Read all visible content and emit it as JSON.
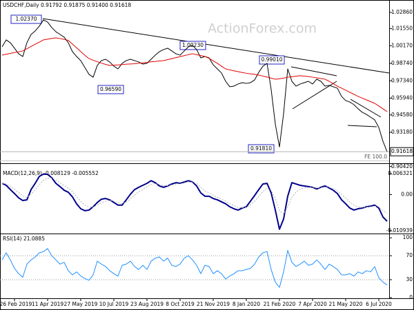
{
  "chart_data": [
    {
      "type": "line",
      "title": "USDCHF,Daily  0.91792 0.91875 0.91400 0.91618",
      "watermark": "ActionForex.com",
      "categories": [
        null,
        null,
        null,
        "26 Feb 2019",
        null,
        null,
        null,
        null,
        null,
        null,
        null,
        "11 Apr 2019",
        null,
        null,
        null,
        null,
        null,
        null,
        null,
        "27 May 2019",
        null,
        null,
        null,
        null,
        null,
        null,
        null,
        "10 Jul 2019",
        null,
        null,
        null,
        null,
        null,
        null,
        null,
        "23 Aug 2019",
        null,
        null,
        null,
        null,
        null,
        null,
        null,
        "8 Oct 2019",
        null,
        null,
        null,
        null,
        null,
        null,
        null,
        "21 Nov 2019",
        null,
        null,
        null,
        null,
        null,
        null,
        null,
        "8 Jan 2020",
        null,
        null,
        null,
        null,
        null,
        null,
        null,
        "21 Feb 2020",
        null,
        null,
        null,
        null,
        null,
        null,
        null,
        "7 Apr 2020",
        null,
        null,
        null,
        null,
        null,
        null,
        null,
        "21 May 2020",
        null,
        null,
        null,
        null,
        null,
        null,
        null,
        "6 Jul 2020",
        null,
        null
      ],
      "series": [
        {
          "name": "USDCHF",
          "color": "#000000",
          "style": "solid",
          "values": [
            1.0008,
            1.0064,
            1.0041,
            0.9997,
            0.9952,
            0.993,
            1.0041,
            1.0108,
            1.0136,
            1.0175,
            1.0225,
            1.0208,
            1.0164,
            1.013,
            1.0108,
            1.0086,
            1.0041,
            0.9969,
            0.993,
            0.9897,
            0.9841,
            0.9786,
            0.9763,
            0.9858,
            0.9897,
            0.9908,
            0.9886,
            0.9852,
            0.983,
            0.9875,
            0.9897,
            0.9908,
            0.9897,
            0.9886,
            0.9869,
            0.9875,
            0.9908,
            0.9941,
            0.9969,
            0.9986,
            0.9997,
            0.9975,
            0.9952,
            0.9941,
            0.9975,
            1.0008,
            1.0019,
            0.9986,
            0.9919,
            0.993,
            0.9919,
            0.9863,
            0.983,
            0.9797,
            0.973,
            0.9686,
            0.9691,
            0.9708,
            0.9719,
            0.9713,
            0.9719,
            0.9741,
            0.9802,
            0.9852,
            0.9875,
            0.9663,
            0.9385,
            0.92,
            0.9469,
            0.983,
            0.973,
            0.9691,
            0.9708,
            0.9719,
            0.973,
            0.9708,
            0.9747,
            0.973,
            0.9691,
            0.9697,
            0.9686,
            0.9674,
            0.9608,
            0.9574,
            0.9563,
            0.9541,
            0.9508,
            0.948,
            0.9463,
            0.9441,
            0.9419,
            0.9357,
            0.9246,
            0.91618
          ]
        },
        {
          "name": "MA",
          "color": "#e00000",
          "style": "solid",
          "values": [
            0.9941,
            0.9948,
            0.9955,
            0.9962,
            0.9968,
            0.9975,
            0.9993,
            1.0011,
            1.0029,
            1.0046,
            1.0064,
            1.007,
            1.0076,
            1.008,
            1.0075,
            1.0068,
            1.006,
            1.003,
            1.0,
            0.997,
            0.994,
            0.9913,
            0.99,
            0.9888,
            0.9877,
            0.9866,
            0.9858,
            0.986,
            0.9862,
            0.9865,
            0.9868,
            0.987,
            0.9872,
            0.9875,
            0.9879,
            0.9883,
            0.9887,
            0.989,
            0.9894,
            0.9897,
            0.9905,
            0.9913,
            0.9921,
            0.9929,
            0.9937,
            0.9945,
            0.9952,
            0.9945,
            0.9938,
            0.993,
            0.9915,
            0.9895,
            0.9875,
            0.9852,
            0.983,
            0.9822,
            0.9815,
            0.9808,
            0.9801,
            0.9795,
            0.979,
            0.9786,
            0.978,
            0.9772,
            0.9764,
            0.9755,
            0.9747,
            0.975,
            0.9756,
            0.9763,
            0.9767,
            0.9771,
            0.9775,
            0.9772,
            0.9768,
            0.9763,
            0.9758,
            0.9752,
            0.9747,
            0.973,
            0.971,
            0.9691,
            0.9675,
            0.9658,
            0.9641,
            0.9625,
            0.9608,
            0.9594,
            0.958,
            0.9566,
            0.9552,
            0.953,
            0.9508,
            0.9485
          ]
        }
      ],
      "ylim": [
        0.9074,
        1.0386
      ],
      "yticks": [
        {
          "value": 1.0286,
          "label": "1.02860"
        },
        {
          "value": 1.0155,
          "label": "1.01550"
        },
        {
          "value": 1.0017,
          "label": "1.00170"
        },
        {
          "value": 0.9874,
          "label": "0.98740"
        },
        {
          "value": 0.9734,
          "label": "0.97340"
        },
        {
          "value": 0.9594,
          "label": "0.95940"
        },
        {
          "value": 0.9458,
          "label": "0.94580"
        },
        {
          "value": 0.9318,
          "label": "0.93180"
        },
        {
          "value": 0.9042,
          "label": "0.90420"
        }
      ],
      "last_price": 0.91618,
      "annotations": [
        "1.02370",
        "1.00230",
        "0.99010",
        "0.96590",
        "0.91810",
        "FE 100.0"
      ]
    },
    {
      "type": "line",
      "title": "MACD(12,26,9) -0.008129 -0.005552",
      "series": [
        {
          "name": "MACD",
          "color": "#00008b",
          "style": "bold",
          "values": [
            0.0034,
            0.0028,
            0.0015,
            0.0003,
            -0.001,
            -0.0018,
            -0.0016,
            0.0015,
            0.0034,
            0.0055,
            0.0062,
            0.0061,
            0.0051,
            0.0034,
            0.0024,
            0.0013,
            0.0007,
            -0.0007,
            -0.0028,
            -0.0043,
            -0.0049,
            -0.0047,
            -0.0037,
            -0.0024,
            -0.0014,
            -0.0012,
            -0.0016,
            -0.0024,
            -0.0032,
            -0.0032,
            -0.0016,
            0.0001,
            0.0015,
            0.0022,
            0.0028,
            0.0034,
            0.0042,
            0.0036,
            0.0026,
            0.0022,
            0.0026,
            0.0032,
            0.0036,
            0.0034,
            0.0038,
            0.0042,
            0.0038,
            0.0026,
            0.0005,
            -0.0005,
            -0.0005,
            -0.0012,
            -0.0016,
            -0.0022,
            -0.0028,
            -0.0037,
            -0.0043,
            -0.0047,
            -0.0041,
            -0.0037,
            -0.002,
            -0.0003,
            0.0015,
            0.0032,
            0.0034,
            0.0005,
            -0.0047,
            -0.0105,
            -0.0074,
            -0.0005,
            0.0036,
            0.0032,
            0.0028,
            0.0026,
            0.0024,
            0.0022,
            0.0017,
            0.0022,
            0.0026,
            0.002,
            0.0013,
            0.0003,
            -0.0016,
            -0.0028,
            -0.0041,
            -0.0047,
            -0.0043,
            -0.0041,
            -0.0037,
            -0.0035,
            -0.0032,
            -0.0041,
            -0.0068,
            -0.0081
          ]
        },
        {
          "name": "Signal",
          "color": "#b0b0b0",
          "style": "dotted",
          "values": [
            0.0034,
            0.0032,
            0.0025,
            0.0016,
            0.0006,
            -0.0004,
            -0.0009,
            0.0001,
            0.0014,
            0.003,
            0.0043,
            0.005,
            0.005,
            0.0044,
            0.0036,
            0.0027,
            0.0019,
            0.0009,
            -0.0006,
            -0.0021,
            -0.0032,
            -0.0038,
            -0.0038,
            -0.0032,
            -0.0025,
            -0.002,
            -0.0018,
            -0.002,
            -0.0025,
            -0.0028,
            -0.0023,
            -0.0013,
            -0.0002,
            0.0008,
            0.0016,
            0.0023,
            0.0031,
            0.0033,
            0.003,
            0.0027,
            0.0027,
            0.0029,
            0.0032,
            0.0033,
            0.0035,
            0.0038,
            0.0038,
            0.0033,
            0.0022,
            0.0011,
            0.0005,
            -0.0002,
            -0.0008,
            -0.0014,
            -0.002,
            -0.0027,
            -0.0033,
            -0.0039,
            -0.004,
            -0.0039,
            -0.0031,
            -0.002,
            -0.0006,
            0.0009,
            0.0019,
            0.0013,
            -0.0011,
            -0.0049,
            -0.0059,
            -0.0037,
            -0.0008,
            0.0008,
            0.0016,
            0.002,
            0.0022,
            0.0022,
            0.002,
            0.0021,
            0.0023,
            0.0022,
            0.0018,
            0.0012,
            0.0001,
            -0.0011,
            -0.0023,
            -0.0033,
            -0.0037,
            -0.0039,
            -0.0038,
            -0.0037,
            -0.0035,
            -0.0037,
            -0.0049,
            -0.0056
          ]
        }
      ],
      "ylim": [
        -0.0116,
        0.0076
      ],
      "yticks": [
        0.006321,
        {
          "value": 0,
          "label": "0.00"
        },
        -0.010939
      ]
    },
    {
      "type": "line",
      "title": "RSI(14) 21.0885",
      "series": [
        {
          "name": "RSI",
          "color": "#1e90ff",
          "style": "solid",
          "values": [
            63,
            75,
            63,
            49,
            40,
            34,
            56,
            63,
            68,
            75,
            77,
            82,
            70,
            63,
            56,
            59,
            45,
            38,
            43,
            36,
            32,
            29,
            38,
            61,
            56,
            52,
            45,
            40,
            36,
            54,
            56,
            61,
            52,
            47,
            54,
            47,
            61,
            66,
            68,
            61,
            66,
            54,
            52,
            56,
            66,
            70,
            63,
            54,
            40,
            54,
            52,
            40,
            45,
            40,
            31,
            36,
            40,
            45,
            45,
            47,
            49,
            56,
            68,
            75,
            77,
            47,
            26,
            17,
            43,
            79,
            59,
            52,
            56,
            61,
            54,
            56,
            63,
            56,
            47,
            56,
            52,
            47,
            38,
            38,
            40,
            36,
            43,
            40,
            45,
            43,
            52,
            33,
            26,
            21.09
          ]
        }
      ],
      "ylim": [
        0,
        106
      ],
      "yticks": [
        100,
        70,
        30,
        0
      ],
      "levels": [
        70,
        30
      ]
    }
  ]
}
